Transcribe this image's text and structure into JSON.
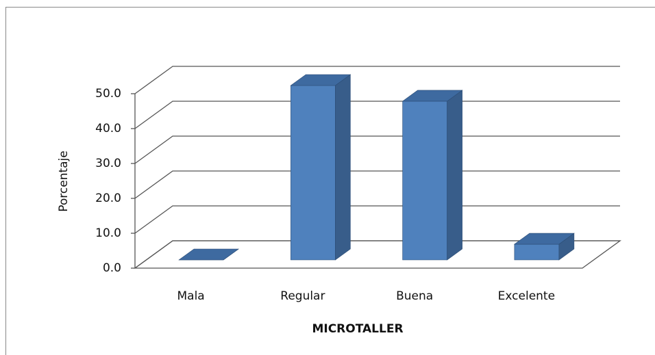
{
  "chart_data": {
    "type": "bar3d",
    "title": null,
    "x_label": "MICROTALLER",
    "y_label": "Porcentaje",
    "categories": [
      "Mala",
      "Regular",
      "Buena",
      "Excelente"
    ],
    "values": [
      0,
      50.0,
      45.5,
      4.5
    ],
    "color": "#4f81bd",
    "ylim": [
      0,
      50
    ],
    "yticks": [
      {
        "value": 0,
        "label": "0.0"
      },
      {
        "value": 10,
        "label": "10.0"
      },
      {
        "value": 20,
        "label": "20.0"
      },
      {
        "value": 30,
        "label": "30.0"
      },
      {
        "value": 40,
        "label": "40.0"
      },
      {
        "value": 50,
        "label": "50.0"
      }
    ],
    "grid": true
  }
}
